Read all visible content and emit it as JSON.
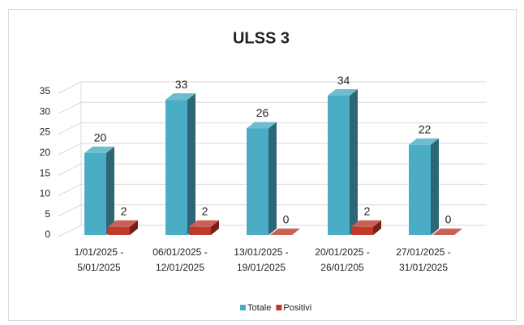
{
  "chart_data": {
    "type": "bar3d",
    "title": "ULSS 3",
    "categories": [
      [
        "1/01/2025 -",
        "5/01/2025"
      ],
      [
        "06/01/2025 -",
        "12/01/2025"
      ],
      [
        "13/01/2025 -",
        "19/01/2025"
      ],
      [
        "20/01/2025 -",
        "26/01/205"
      ],
      [
        "27/01/2025 -",
        "31/01/2025"
      ]
    ],
    "series": [
      {
        "name": "Totale",
        "color": "#4bacc6",
        "values": [
          20,
          33,
          26,
          34,
          22
        ]
      },
      {
        "name": "Positivi",
        "color": "#c0392b",
        "values": [
          2,
          2,
          0,
          2,
          0
        ]
      }
    ],
    "ylim": [
      0,
      35
    ],
    "yticks": [
      0,
      5,
      10,
      15,
      20,
      25,
      30,
      35
    ],
    "grid": true,
    "legend": "bottom"
  }
}
